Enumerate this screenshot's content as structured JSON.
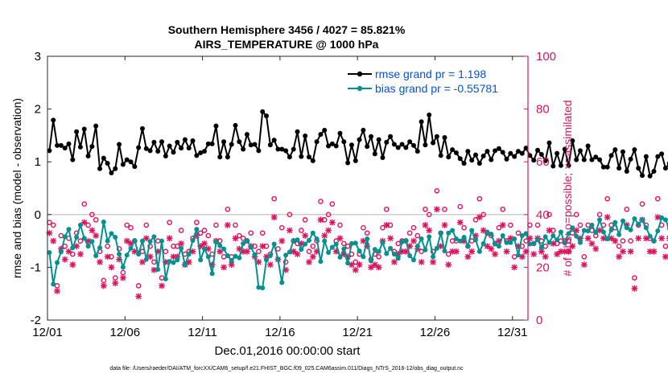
{
  "title_line1": "Southern Hemisphere 3456 / 4027 = 85.821%",
  "title_line2": "AIRS_TEMPERATURE @ 1000 hPa",
  "footer": "data file: /Users/raeder/DAI/ATM_forcXX/CAM6_setup/f.e21.FHIST_BGC.f09_025.CAM6assim.011/Diags_NTrS_2016-12/obs_diag_output.nc",
  "colors": {
    "rmse": "#000000",
    "bias": "#009090",
    "obs": "#e0105a",
    "legend_text": "#0a50d8",
    "zero_line": "#bbbbbb"
  },
  "chart_data": {
    "type": "line",
    "title": "Southern Hemisphere 3456 / 4027 = 85.821%  AIRS_TEMPERATURE @ 1000 hPa",
    "xlabel": "Dec.01,2016 00:00:00 start",
    "ylabel": "rmse and bias (model - observation)",
    "y2label": "# of obs: o=possible; ×=assimilated",
    "xlim": [
      0,
      31
    ],
    "ylim": [
      -2,
      3
    ],
    "y2lim": [
      0,
      100
    ],
    "xticks": [
      0,
      5,
      10,
      15,
      20,
      25,
      30
    ],
    "xticklabels": [
      "12/01",
      "12/06",
      "12/11",
      "12/16",
      "12/21",
      "12/26",
      "12/31"
    ],
    "yticks": [
      -2,
      -1,
      0,
      1,
      2,
      3
    ],
    "yticklabels": [
      "-2",
      "-1",
      "0",
      "1",
      "2",
      "3"
    ],
    "y2ticks": [
      0,
      20,
      40,
      60,
      80,
      100
    ],
    "y2ticklabels": [
      "0",
      "20",
      "40",
      "60",
      "80",
      "100"
    ],
    "grid": false,
    "legend_position": "top-right",
    "step_days": 0.25,
    "series": [
      {
        "name": "rmse grand pr = 1.198",
        "axis": "left",
        "color": "#000000",
        "marker": "dot",
        "values": [
          1.21,
          1.79,
          1.31,
          1.31,
          1.26,
          1.34,
          1.04,
          1.57,
          1.28,
          1.62,
          1.11,
          1.29,
          1.68,
          0.87,
          1.07,
          0.97,
          0.79,
          0.87,
          1.33,
          0.95,
          1.04,
          1.0,
          0.91,
          1.27,
          1.63,
          1.25,
          1.21,
          1.37,
          1.2,
          1.38,
          1.11,
          1.3,
          1.18,
          1.37,
          1.26,
          1.42,
          1.26,
          1.4,
          1.12,
          1.17,
          1.2,
          1.34,
          1.34,
          1.68,
          1.09,
          1.38,
          1.09,
          1.33,
          1.69,
          1.38,
          1.24,
          1.52,
          1.32,
          1.33,
          1.21,
          1.95,
          1.87,
          1.32,
          1.41,
          1.24,
          1.24,
          1.21,
          1.09,
          1.24,
          1.57,
          1.1,
          1.49,
          1.09,
          1.02,
          1.38,
          1.52,
          1.6,
          1.3,
          1.34,
          1.3,
          1.54,
          1.38,
          0.98,
          1.32,
          1.02,
          1.42,
          1.6,
          1.29,
          1.48,
          1.15,
          1.42,
          1.08,
          1.37,
          1.48,
          1.33,
          1.27,
          1.33,
          1.27,
          1.38,
          1.31,
          1.2,
          1.76,
          1.32,
          1.89,
          1.36,
          1.48,
          1.12,
          1.46,
          1.09,
          1.23,
          1.17,
          1.06,
          0.97,
          1.2,
          1.03,
          1.13,
          0.97,
          1.11,
          1.2,
          1.04,
          1.21,
          1.25,
          1.18,
          1.05,
          1.16,
          1.1,
          1.2,
          1.16,
          1.26,
          1.12,
          1.03,
          1.22,
          1.14,
          1.02,
          1.36,
          0.92,
          1.16,
          0.93,
          1.24,
          0.93,
          1.4,
          1.04,
          1.21,
          1.04,
          1.3,
          1.04,
          1.09,
          1.04,
          0.9,
          0.9,
          1.12,
          1.23,
          0.88,
          1.19,
          0.82,
          1.05,
          1.23,
          0.88,
          0.74,
          1.1,
          0.73,
          0.82,
          1.1,
          1.15,
          0.88,
          0.97,
          1.09,
          1.01,
          1.01,
          1.08,
          1.05,
          1.24,
          0.86,
          1.0,
          1.14,
          1.08,
          0.98,
          1.16,
          1.06,
          0.98,
          1.09,
          1.06,
          1.02,
          1.13,
          1.09,
          1.09
        ]
      },
      {
        "name": "bias grand pr = -0.55781",
        "axis": "left",
        "color": "#009090",
        "marker": "dot",
        "values": [
          -0.72,
          -1.32,
          -0.91,
          -0.71,
          -0.42,
          -0.28,
          -0.63,
          -0.43,
          -0.2,
          -0.45,
          -0.6,
          -0.51,
          -0.78,
          -0.63,
          -0.14,
          -0.5,
          -0.36,
          -0.43,
          -0.75,
          -1.0,
          -0.77,
          -0.64,
          -0.49,
          -0.75,
          -0.5,
          -0.85,
          -0.51,
          -0.42,
          -1.04,
          -0.5,
          -1.22,
          -0.89,
          -0.91,
          -0.86,
          -0.64,
          -0.95,
          -0.75,
          -0.49,
          -0.28,
          -0.86,
          -0.65,
          -0.8,
          -1.12,
          -0.52,
          -0.59,
          -0.65,
          -0.78,
          -0.88,
          -0.79,
          -0.82,
          -0.55,
          -0.49,
          -0.62,
          -0.76,
          -1.38,
          -1.39,
          -0.86,
          -0.78,
          -0.56,
          -0.85,
          -1.29,
          -0.77,
          -0.71,
          -0.49,
          -0.48,
          -0.66,
          -0.56,
          -0.49,
          -0.35,
          -0.46,
          -0.89,
          -0.5,
          -0.72,
          -0.62,
          -0.56,
          -0.81,
          -0.65,
          -0.92,
          -0.55,
          -0.54,
          -0.69,
          -0.8,
          -0.46,
          -0.88,
          -0.66,
          -0.7,
          -0.53,
          -0.74,
          -0.64,
          -0.75,
          -0.83,
          -0.52,
          -0.49,
          -0.78,
          -0.86,
          -0.6,
          -0.46,
          -0.67,
          -0.42,
          -0.8,
          -0.64,
          -0.35,
          -0.69,
          -0.35,
          -0.3,
          -0.46,
          -0.5,
          -0.43,
          -0.6,
          -0.3,
          -0.48,
          -0.7,
          -0.55,
          -0.33,
          -0.37,
          -0.56,
          -0.6,
          -0.4,
          -0.53,
          -0.53,
          -0.46,
          -0.77,
          -0.4,
          -0.36,
          -0.56,
          -0.55,
          -0.48,
          -0.62,
          -0.42,
          -0.53,
          -0.4,
          -0.48,
          -0.33,
          -0.54,
          -0.36,
          -0.25,
          -0.41,
          -0.53,
          -0.3,
          -0.31,
          -0.2,
          -0.34,
          -0.1,
          -0.33,
          -0.46,
          -0.29,
          -0.15,
          -0.38,
          -0.12,
          -0.25,
          -0.29,
          -0.08,
          -0.18,
          -0.1,
          -0.25,
          -0.41,
          -0.5,
          -0.31,
          -0.06,
          -0.1,
          -0.26,
          -0.07,
          -0.21,
          -0.07,
          -0.32,
          -0.15,
          -0.17,
          -0.27,
          -0.33,
          -0.2,
          -0.02,
          -0.12,
          -0.18,
          -0.54,
          -0.49,
          -0.22,
          -0.58,
          -0.44,
          -0.53,
          -0.62
        ]
      },
      {
        "name": "# of obs possible",
        "axis": "right",
        "color": "#e0105a",
        "marker": "circle",
        "values": [
          37,
          36,
          13,
          32,
          28,
          31,
          25,
          33,
          30,
          44,
          36,
          40,
          38,
          26,
          15,
          28,
          24,
          16,
          27,
          18,
          36,
          35,
          30,
          13,
          26,
          36,
          28,
          22,
          30,
          16,
          26,
          37,
          28,
          28,
          34,
          25,
          26,
          31,
          37,
          33,
          34,
          32,
          25,
          36,
          30,
          24,
          42,
          24,
          36,
          32,
          31,
          30,
          33,
          28,
          26,
          33,
          28,
          25,
          46,
          27,
          35,
          22,
          40,
          30,
          29,
          34,
          38,
          26,
          28,
          30,
          45,
          38,
          40,
          44,
          30,
          36,
          29,
          28,
          25,
          22,
          25,
          35,
          33,
          23,
          25,
          24,
          35,
          42,
          36,
          26,
          29,
          30,
          30,
          33,
          35,
          32,
          26,
          42,
          40,
          26,
          49,
          33,
          42,
          25,
          30,
          30,
          43,
          35,
          28,
          30,
          38,
          46,
          40,
          33,
          32,
          29,
          35,
          42,
          30,
          36,
          24,
          33,
          28,
          30,
          36,
          29,
          36,
          30,
          28,
          40,
          34,
          29,
          30,
          30,
          30,
          33,
          40,
          36,
          24,
          36,
          34,
          32,
          40,
          36,
          46,
          36,
          35,
          28,
          30,
          42,
          30,
          16,
          36,
          44,
          36,
          31,
          30,
          46,
          36,
          28,
          36,
          44,
          38,
          30,
          40,
          46,
          30,
          28,
          34,
          36,
          43,
          36,
          32,
          40,
          35,
          36,
          30,
          44,
          36,
          40,
          38,
          31,
          28,
          38
        ]
      },
      {
        "name": "# of obs assimilated",
        "axis": "right",
        "color": "#e0105a",
        "marker": "x",
        "values": [
          33,
          30,
          11,
          27,
          23,
          26,
          21,
          28,
          25,
          37,
          30,
          34,
          32,
          22,
          13,
          24,
          20,
          14,
          23,
          16,
          30,
          29,
          26,
          9,
          22,
          31,
          24,
          19,
          26,
          13,
          22,
          31,
          24,
          24,
          29,
          21,
          22,
          26,
          32,
          28,
          29,
          27,
          21,
          30,
          26,
          20,
          36,
          21,
          31,
          27,
          26,
          26,
          28,
          24,
          22,
          28,
          24,
          21,
          39,
          23,
          30,
          19,
          34,
          26,
          25,
          29,
          32,
          22,
          24,
          26,
          38,
          32,
          34,
          37,
          26,
          31,
          25,
          24,
          21,
          19,
          21,
          30,
          28,
          20,
          21,
          20,
          30,
          36,
          31,
          22,
          25,
          26,
          26,
          28,
          30,
          27,
          22,
          36,
          34,
          22,
          42,
          28,
          36,
          21,
          26,
          26,
          37,
          30,
          24,
          26,
          32,
          39,
          34,
          28,
          27,
          25,
          30,
          36,
          26,
          31,
          20,
          28,
          24,
          26,
          31,
          25,
          31,
          26,
          24,
          34,
          29,
          25,
          26,
          26,
          26,
          28,
          34,
          31,
          21,
          31,
          29,
          27,
          34,
          31,
          39,
          31,
          30,
          24,
          26,
          36,
          26,
          12,
          31,
          38,
          31,
          26,
          26,
          39,
          31,
          24,
          31,
          37,
          32,
          26,
          34,
          39,
          26,
          24,
          29,
          31,
          37,
          31,
          27,
          34,
          30,
          31,
          26,
          37,
          31,
          34,
          32,
          27,
          24,
          33
        ]
      }
    ]
  }
}
